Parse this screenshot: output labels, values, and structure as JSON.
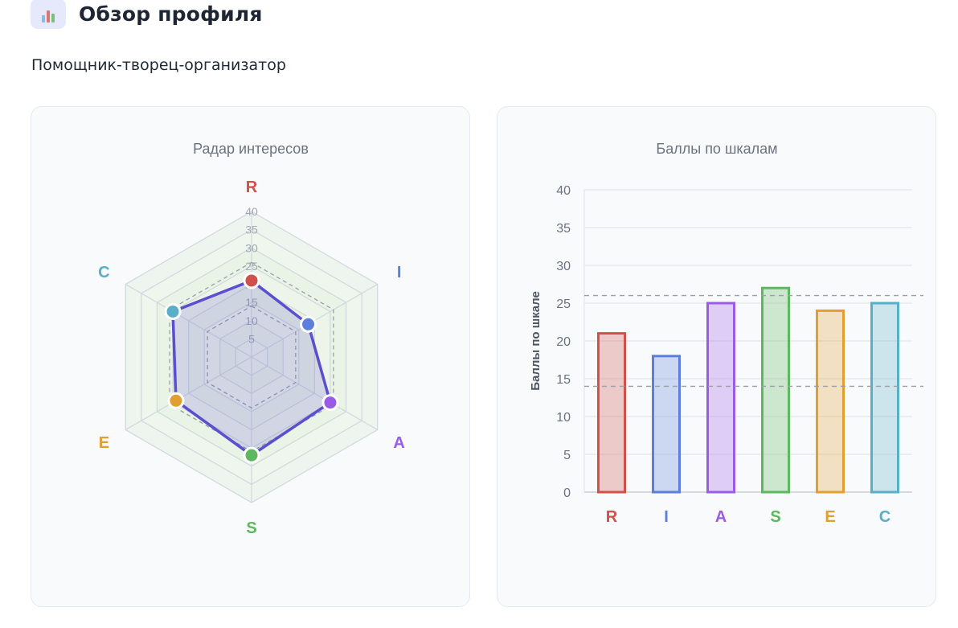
{
  "header": {
    "title": "Обзор профиля",
    "icon": "bar-chart-icon",
    "subtitle": "Помощник-творец-организатор"
  },
  "colors": {
    "R": "#d0504a",
    "I": "#5b7fdb",
    "A": "#9a5ce6",
    "S": "#5cb85c",
    "E": "#e0a030",
    "C": "#5aafc8",
    "radar_line": "#5b4fcf",
    "grid": "#cfd8dc",
    "reference": "#9aa0a6"
  },
  "chart_data": [
    {
      "type": "radar",
      "title": "Радар интересов",
      "axes": [
        "R",
        "I",
        "A",
        "S",
        "E",
        "C"
      ],
      "values": [
        21,
        18,
        25,
        27,
        24,
        25
      ],
      "range": [
        0,
        40
      ],
      "ticks": [
        5,
        10,
        15,
        20,
        25,
        30,
        35,
        40
      ],
      "reference_band": [
        14,
        26
      ],
      "grid": true
    },
    {
      "type": "bar",
      "title": "Баллы по шкалам",
      "categories": [
        "R",
        "I",
        "A",
        "S",
        "E",
        "C"
      ],
      "values": [
        21,
        18,
        25,
        27,
        24,
        25
      ],
      "ylabel": "Баллы по шкале",
      "xlabel": "",
      "ylim": [
        0,
        40
      ],
      "yticks": [
        0,
        5,
        10,
        15,
        20,
        25,
        30,
        35,
        40
      ],
      "reference_lines": [
        14,
        26
      ],
      "grid": true
    }
  ]
}
